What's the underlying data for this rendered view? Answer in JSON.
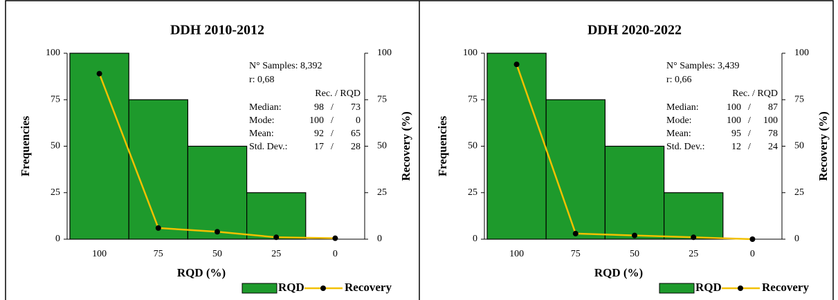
{
  "chart_data": [
    {
      "type": "bar",
      "title": "DDH 2010-2012",
      "x_label": "RQD (%)",
      "y_label": "Frequencies",
      "y2_label": "Recovery (%)",
      "categories": [
        "100",
        "75",
        "50",
        "25",
        "0"
      ],
      "series": [
        {
          "name": "RQD",
          "type": "bar",
          "color": "#1e9a2c",
          "values": [
            100,
            75,
            50,
            25,
            null
          ]
        },
        {
          "name": "Recovery",
          "type": "line",
          "axis": "y2",
          "color": "#f2c000",
          "values": [
            89,
            6,
            4,
            1,
            0.5
          ]
        }
      ],
      "ylim": [
        0,
        100
      ],
      "yticks": [
        0,
        25,
        50,
        75,
        100
      ],
      "y2lim": [
        0,
        100
      ],
      "y2ticks": [
        0,
        25,
        50,
        75,
        100
      ],
      "annotations": {
        "samples": "N° Samples: 8,392",
        "r": "r: 0,68",
        "header": "Rec. / RQD",
        "rows": [
          [
            "Median:",
            98,
            73
          ],
          [
            "Mode:",
            100,
            0
          ],
          [
            "Mean:",
            92,
            65
          ],
          [
            "Std. Dev.:",
            17,
            28
          ]
        ]
      }
    },
    {
      "type": "bar",
      "title": "DDH 2020-2022",
      "x_label": "RQD (%)",
      "y_label": "Frequencies",
      "y2_label": "Recovery (%)",
      "categories": [
        "100",
        "75",
        "50",
        "25",
        "0"
      ],
      "series": [
        {
          "name": "RQD",
          "type": "bar",
          "color": "#1e9a2c",
          "values": [
            100,
            75,
            50,
            25,
            null
          ]
        },
        {
          "name": "Recovery",
          "type": "line",
          "axis": "y2",
          "color": "#f2c000",
          "values": [
            94,
            3,
            2,
            1,
            0
          ]
        }
      ],
      "ylim": [
        0,
        100
      ],
      "yticks": [
        0,
        25,
        50,
        75,
        100
      ],
      "y2lim": [
        0,
        100
      ],
      "y2ticks": [
        0,
        25,
        50,
        75,
        100
      ],
      "annotations": {
        "samples": "N° Samples: 3,439",
        "r": "r: 0,66",
        "header": "Rec. / RQD",
        "rows": [
          [
            "Median:",
            100,
            87
          ],
          [
            "Mode:",
            100,
            100
          ],
          [
            "Mean:",
            95,
            78
          ],
          [
            "Std. Dev.:",
            12,
            24
          ]
        ]
      }
    }
  ]
}
